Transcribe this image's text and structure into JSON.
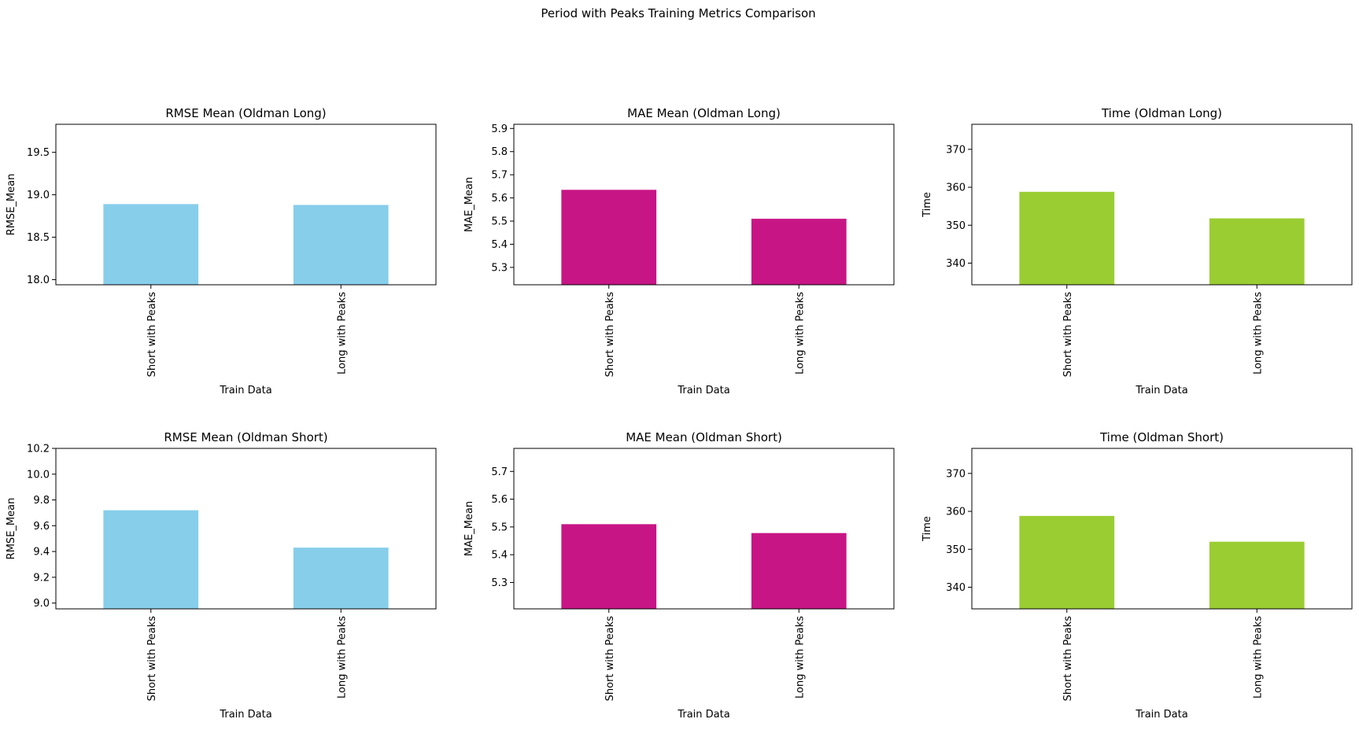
{
  "figure": {
    "title": "Period with Peaks Training Metrics Comparison"
  },
  "chart_data": [
    {
      "type": "bar",
      "title": "RMSE Mean (Oldman Long)",
      "xlabel": "Train Data",
      "ylabel": "RMSE_Mean",
      "categories": [
        "Short with Peaks",
        "Long with Peaks"
      ],
      "values": [
        18.89,
        18.88
      ],
      "ylim": [
        17.94,
        19.83
      ],
      "yticks": [
        18.0,
        18.5,
        19.0,
        19.5
      ],
      "ytick_labels": [
        "18.0",
        "18.5",
        "19.0",
        "19.5"
      ],
      "color": "#87ceeb",
      "grid": false
    },
    {
      "type": "bar",
      "title": "MAE Mean (Oldman Long)",
      "xlabel": "Train Data",
      "ylabel": "MAE_Mean",
      "categories": [
        "Short with Peaks",
        "Long with Peaks"
      ],
      "values": [
        5.635,
        5.51
      ],
      "ylim": [
        5.225,
        5.918
      ],
      "yticks": [
        5.3,
        5.4,
        5.5,
        5.6,
        5.7,
        5.8,
        5.9
      ],
      "ytick_labels": [
        "5.3",
        "5.4",
        "5.5",
        "5.6",
        "5.7",
        "5.8",
        "5.9"
      ],
      "color": "#c71585",
      "grid": false
    },
    {
      "type": "bar",
      "title": "Time (Oldman Long)",
      "xlabel": "Train Data",
      "ylabel": "Time",
      "categories": [
        "Short with Peaks",
        "Long with Peaks"
      ],
      "values": [
        358.8,
        351.8
      ],
      "ylim": [
        334.3,
        376.6
      ],
      "yticks": [
        340,
        350,
        360,
        370
      ],
      "ytick_labels": [
        "340",
        "350",
        "360",
        "370"
      ],
      "color": "#9acd32",
      "grid": false
    },
    {
      "type": "bar",
      "title": "RMSE Mean (Oldman Short)",
      "xlabel": "Train Data",
      "ylabel": "RMSE_Mean",
      "categories": [
        "Short with Peaks",
        "Long with Peaks"
      ],
      "values": [
        9.72,
        9.43
      ],
      "ylim": [
        8.955,
        10.2
      ],
      "yticks": [
        9.0,
        9.2,
        9.4,
        9.6,
        9.8,
        10.0,
        10.2
      ],
      "ytick_labels": [
        "9.0",
        "9.2",
        "9.4",
        "9.6",
        "9.8",
        "10.0",
        "10.2"
      ],
      "color": "#87ceeb",
      "grid": false
    },
    {
      "type": "bar",
      "title": "MAE Mean (Oldman Short)",
      "xlabel": "Train Data",
      "ylabel": "MAE_Mean",
      "categories": [
        "Short with Peaks",
        "Long with Peaks"
      ],
      "values": [
        5.51,
        5.478
      ],
      "ylim": [
        5.205,
        5.783
      ],
      "yticks": [
        5.3,
        5.4,
        5.5,
        5.6,
        5.7
      ],
      "ytick_labels": [
        "5.3",
        "5.4",
        "5.5",
        "5.6",
        "5.7"
      ],
      "color": "#c71585",
      "grid": false
    },
    {
      "type": "bar",
      "title": "Time (Oldman Short)",
      "xlabel": "Train Data",
      "ylabel": "Time",
      "categories": [
        "Short with Peaks",
        "Long with Peaks"
      ],
      "values": [
        358.8,
        352.0
      ],
      "ylim": [
        334.3,
        376.6
      ],
      "yticks": [
        340,
        350,
        360,
        370
      ],
      "ytick_labels": [
        "340",
        "350",
        "360",
        "370"
      ],
      "color": "#9acd32",
      "grid": false
    }
  ]
}
